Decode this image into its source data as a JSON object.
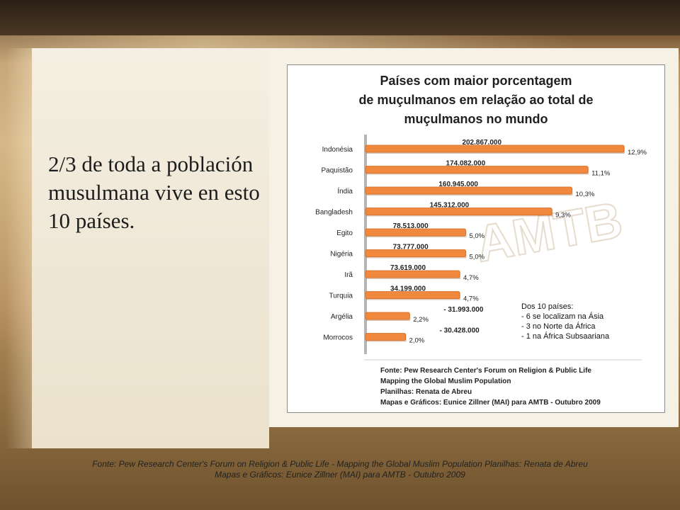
{
  "slide": {
    "heading": "2/3 de toda a población musulmana vive en esto 10 países."
  },
  "chart_data": {
    "type": "bar",
    "orientation": "horizontal",
    "title_lines": [
      "Países com maior porcentagem",
      "de muçulmanos em relação ao total de",
      "muçulmanos no mundo"
    ],
    "categories": [
      "Indonésia",
      "Paquistão",
      "Índia",
      "Bangladesh",
      "Egito",
      "Nigéria",
      "Irã",
      "Turquia",
      "Argélia",
      "Morrocos"
    ],
    "values": [
      12.9,
      11.1,
      10.3,
      9.3,
      5.0,
      5.0,
      4.7,
      4.7,
      2.2,
      2.0
    ],
    "percent_labels": [
      "12,9%",
      "11,1%",
      "10,3%",
      "9,3%",
      "5,0%",
      "5,0%",
      "4,7%",
      "4,7%",
      "2,2%",
      "2,0%"
    ],
    "population_labels": [
      "202.867.000",
      "174.082.000",
      "160.945.000",
      "145.312.000",
      "78.513.000",
      "73.777.000",
      "73.619.000",
      "34.199.000",
      "- 31.993.000",
      "- 30.428.000"
    ],
    "bar_color": "#f0883e",
    "note_lines": [
      "Dos 10 países:",
      "- 6 se localizam na Ásia",
      "- 3 no Norte da África",
      "- 1 na África Subsaariana"
    ],
    "source_lines": [
      "Fonte: Pew Research Center's Forum on Religion & Public Life",
      "Mapping the Global Muslim Population",
      "Planilhas: Renata de Abreu",
      "Mapas e Gráficos: Eunice Zillner (MAI) para AMTB - Outubro 2009"
    ],
    "watermark": "AMTB"
  },
  "footer": {
    "line1": "Fonte: Pew Research Center's Forum on Religion & Public Life - Mapping the Global Muslim Population Planilhas: Renata de Abreu",
    "line2": "Mapas e Gráficos: Eunice Zillner (MAI) para AMTB - Outubro 2009"
  }
}
